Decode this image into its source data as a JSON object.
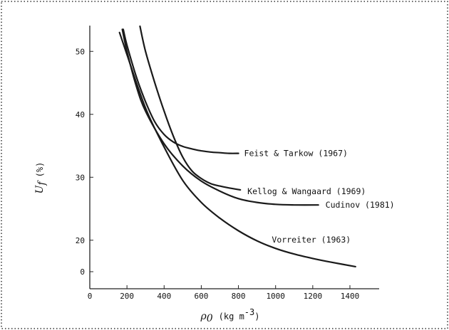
{
  "chart_data": {
    "type": "line",
    "title": "",
    "xlabel": "ρ₀ (kg m⁻³)",
    "ylabel": "U_f (%)",
    "xlabel_parts": {
      "symbol": "ρ",
      "subscript": "0",
      "unit_prefix": "(kg m",
      "unit_exponent": "-3",
      "unit_suffix": ")"
    },
    "ylabel_parts": {
      "symbol": "U",
      "subscript": "f",
      "unit": "(%)"
    },
    "xlim": [
      0,
      1550
    ],
    "ylim": [
      0,
      56
    ],
    "y_break": [
      0,
      15
    ],
    "xticks": [
      "0",
      "200",
      "400",
      "600",
      "800",
      "1000",
      "1200",
      "1400"
    ],
    "xtick_values": [
      0,
      200,
      400,
      600,
      800,
      1000,
      1200,
      1400
    ],
    "yticks": [
      "0",
      "20",
      "30",
      "40",
      "50"
    ],
    "ytick_values": [
      15,
      20,
      30,
      40,
      50
    ],
    "grid": false,
    "legend": "none (series labeled inline)",
    "colors": {
      "line": "#1a1a1a",
      "border": "#333333"
    },
    "series": [
      {
        "name": "Feist & Tarkow (1967)",
        "x": [
          180,
          200,
          250,
          300,
          350,
          400,
          450,
          500,
          550,
          600,
          650,
          700,
          750,
          800
        ],
        "y": [
          53.5,
          51,
          46,
          42,
          38.8,
          36.8,
          35.6,
          34.9,
          34.5,
          34.2,
          34.0,
          33.9,
          33.8,
          33.8
        ]
      },
      {
        "name": "Kellog & Wangaard (1969)",
        "x": [
          270,
          300,
          350,
          400,
          450,
          500,
          550,
          600,
          650,
          700,
          750,
          810
        ],
        "y": [
          54,
          50,
          45,
          40.5,
          36.5,
          33.2,
          31.0,
          29.8,
          29.0,
          28.6,
          28.3,
          28.0
        ]
      },
      {
        "name": "Cudinov (1981)",
        "x": [
          175,
          200,
          250,
          300,
          400,
          500,
          600,
          700,
          800,
          900,
          1000,
          1100,
          1230
        ],
        "y": [
          53.5,
          50,
          44.5,
          40.5,
          35.3,
          31.8,
          29.4,
          27.8,
          26.6,
          26.0,
          25.7,
          25.6,
          25.6
        ]
      },
      {
        "name": "Vorreiter (1963)",
        "x": [
          160,
          200,
          300,
          400,
          500,
          600,
          700,
          800,
          900,
          1000,
          1100,
          1200,
          1300,
          1430
        ],
        "y": [
          53,
          49.5,
          41,
          34.8,
          29.5,
          26.0,
          23.5,
          21.5,
          19.9,
          18.7,
          17.8,
          17.1,
          16.5,
          15.8
        ]
      }
    ]
  }
}
